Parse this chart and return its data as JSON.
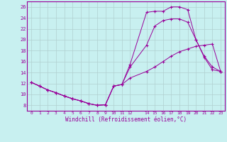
{
  "xlabel": "Windchill (Refroidissement éolien,°C)",
  "bg_color": "#c8f0f0",
  "line_color": "#990099",
  "grid_color": "#b0d0d0",
  "xlim": [
    -0.5,
    23.5
  ],
  "ylim": [
    7,
    27
  ],
  "xticks": [
    0,
    1,
    2,
    3,
    4,
    5,
    6,
    7,
    8,
    9,
    10,
    11,
    12,
    14,
    15,
    16,
    17,
    18,
    19,
    20,
    21,
    22,
    23
  ],
  "yticks": [
    8,
    10,
    12,
    14,
    16,
    18,
    20,
    22,
    24,
    26
  ],
  "line1_x": [
    0,
    1,
    2,
    3,
    4,
    5,
    6,
    7,
    8,
    9,
    10,
    11,
    12,
    14,
    15,
    16,
    17,
    18,
    19,
    20,
    21,
    22,
    23
  ],
  "line1_y": [
    12.2,
    11.5,
    10.8,
    10.3,
    9.7,
    9.2,
    8.8,
    8.3,
    8.0,
    8.1,
    11.5,
    11.8,
    15.5,
    25.0,
    25.2,
    25.2,
    26.0,
    26.0,
    25.5,
    20.0,
    17.0,
    15.0,
    14.2
  ],
  "line2_x": [
    0,
    1,
    2,
    3,
    4,
    5,
    6,
    7,
    8,
    9,
    10,
    11,
    12,
    14,
    15,
    16,
    17,
    18,
    19,
    20,
    21,
    22,
    23
  ],
  "line2_y": [
    12.2,
    11.5,
    10.8,
    10.3,
    9.7,
    9.2,
    8.8,
    8.3,
    8.0,
    8.1,
    11.5,
    11.8,
    15.0,
    19.0,
    22.5,
    23.5,
    23.8,
    23.8,
    23.2,
    20.0,
    16.8,
    14.5,
    14.2
  ],
  "line3_x": [
    0,
    1,
    2,
    3,
    4,
    5,
    6,
    7,
    8,
    9,
    10,
    11,
    12,
    14,
    15,
    16,
    17,
    18,
    19,
    20,
    21,
    22,
    23
  ],
  "line3_y": [
    12.2,
    11.5,
    10.8,
    10.3,
    9.7,
    9.2,
    8.8,
    8.3,
    8.0,
    8.1,
    11.5,
    11.8,
    13.0,
    14.2,
    15.0,
    16.0,
    17.0,
    17.8,
    18.3,
    18.8,
    19.0,
    19.2,
    14.2
  ]
}
